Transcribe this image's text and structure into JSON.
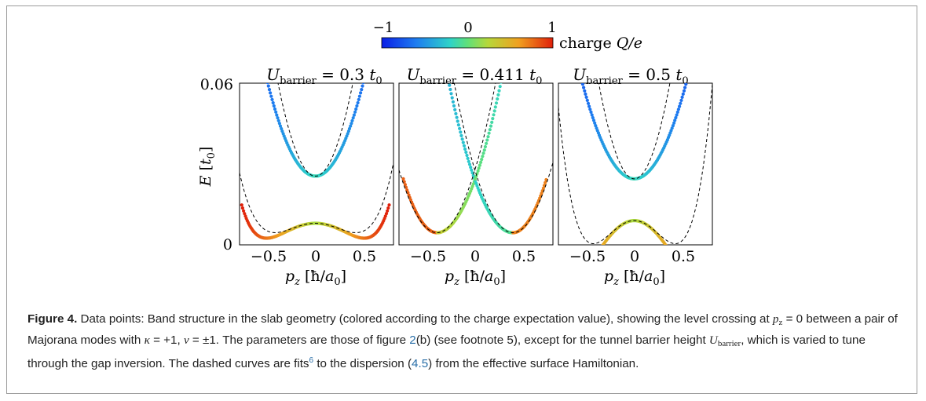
{
  "chart_data": [
    {
      "type": "scatter",
      "title": "U_barrier = 0.3 t_0",
      "title_main": "U",
      "title_sub": "barrier",
      "title_value": " = 0.3 ",
      "title_unit": "t",
      "title_unit_sub": "0",
      "xlabel": "p_z [ħ/a_0]",
      "ylabel": "E [t_0]",
      "xlim": [
        -0.7,
        0.72
      ],
      "ylim": [
        0,
        0.06
      ],
      "xticks": [
        "−0.5",
        "0",
        "0.5"
      ],
      "yticks": [
        "0",
        "0.06"
      ],
      "model": {
        "upper": {
          "e0": 0.0255,
          "a": 0.178
        },
        "lower": {
          "e0": 0.008,
          "b": 0.09,
          "c": 0.05
        }
      },
      "fit": {
        "upper": {
          "e0": 0.0255,
          "a": 0.29
        },
        "lower": {
          "e0": 0.008,
          "b": 0.155,
          "c": 0.0
        }
      }
    },
    {
      "type": "scatter",
      "title": "U_barrier = 0.411 t_0",
      "title_main": "U",
      "title_sub": "barrier",
      "title_value": " = 0.411 ",
      "title_unit": "t",
      "title_unit_sub": "0",
      "xlabel": "p_z [ħ/a_0]",
      "ylabel": "",
      "xlim": [
        -0.7,
        0.72
      ],
      "ylim": [
        0,
        0.06
      ],
      "xticks": [
        "−0.5",
        "0",
        "0.5"
      ],
      "yticks": [],
      "crossing": {
        "p0": 0.35,
        "e0": 0.0045,
        "v": 0.068,
        "q": 0.245
      },
      "fit_crossing": {
        "p0": 0.35,
        "e0": 0.0045,
        "v": 0.068,
        "q": 0.3
      }
    },
    {
      "type": "scatter",
      "title": "U_barrier = 0.5 t_0",
      "title_main": "U",
      "title_sub": "barrier",
      "title_value": " = 0.5 ",
      "title_unit": "t",
      "title_unit_sub": "0",
      "xlabel": "p_z [ħ/a_0]",
      "ylabel": "",
      "xlim": [
        -0.7,
        0.72
      ],
      "ylim": [
        0,
        0.06
      ],
      "xticks": [
        "−0.5",
        "0",
        "0.5"
      ],
      "yticks": [],
      "model": {
        "upper": {
          "e0": 0.0245,
          "a": 0.155
        },
        "lower": {
          "e0": 0.009,
          "b": 0.13,
          "c": 0.12
        }
      },
      "fit": {
        "upper": {
          "e0": 0.0245,
          "a": 0.33
        },
        "lower": {
          "e0": 0.009,
          "b": 0.21,
          "c": 0.0
        }
      }
    }
  ],
  "colorbar": {
    "label": "charge Q/e",
    "label_prefix": "charge ",
    "label_math": "Q/e",
    "ticks": [
      "−1",
      "0",
      "1"
    ],
    "range": [
      -1,
      1
    ]
  },
  "caption": {
    "figure_label": "Figure 4.",
    "text_1": " Data points: Band structure in the slab geometry (colored according to the charge expectation value), showing the level crossing at ",
    "math_pz": "p",
    "math_pz_sub": "z",
    "text_2": " = 0 between a pair of Majorana modes with ",
    "math_kappa": "κ",
    "text_3": " = +1, ",
    "math_nu": "ν",
    "text_4": " = ±1. The parameters are those of figure ",
    "ref_fig": "2",
    "text_5": "(b) (see footnote 5), except for the tunnel barrier height ",
    "math_U": "U",
    "math_U_sub": "barrier",
    "text_6": ", which is varied to tune through the gap inversion. The dashed curves are fits",
    "footnote": "6",
    "text_7": " to the dispersion (",
    "ref_eq": "4.5",
    "text_8": ") from the effective surface Hamiltonian."
  }
}
